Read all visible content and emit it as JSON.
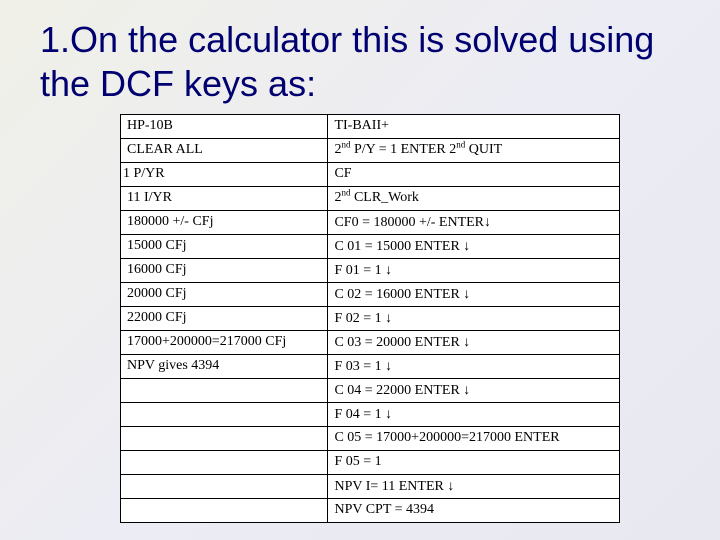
{
  "title": "1.On the calculator this is solved using the DCF keys as:",
  "table": {
    "rows": [
      {
        "a": "HP-10B",
        "b": "TI-BAII+"
      },
      {
        "a": "CLEAR ALL",
        "b": "2{nd} P/Y = 1 ENTER 2{nd} QUIT"
      },
      {
        "a": "1 P/YR",
        "b": "CF",
        "outdent": true
      },
      {
        "a": "11 I/YR",
        "b": "2{nd} CLR_Work"
      },
      {
        "a": "180000 +/- CFj",
        "b": "CF0 = 180000 +/- ENTER{down}"
      },
      {
        "a": "15000 CFj",
        "b": "C 01 = 15000 ENTER {down}"
      },
      {
        "a": "16000 CFj",
        "b": "F 01 = 1 {down}"
      },
      {
        "a": "20000 CFj",
        "b": "C 02 = 16000 ENTER {down}"
      },
      {
        "a": "22000 CFj",
        "b": "F 02 = 1 {down}"
      },
      {
        "a": "17000+200000=217000 CFj",
        "b": "C 03 = 20000 ENTER {down}"
      },
      {
        "a": "NPV gives 4394",
        "b": "F 03 = 1 {down}"
      },
      {
        "a": "",
        "b": "C 04 = 22000 ENTER {down}"
      },
      {
        "a": "",
        "b": "F 04 = 1 {down}"
      },
      {
        "a": "",
        "b": "C 05 = 17000+200000=217000 ENTER"
      },
      {
        "a": "",
        "b": "F 05 = 1"
      },
      {
        "a": "",
        "b": "NPV I= 11 ENTER {down}"
      },
      {
        "a": "",
        "b": "NPV CPT = 4394"
      }
    ]
  },
  "glyphs": {
    "nd": "nd",
    "down": "↓"
  }
}
